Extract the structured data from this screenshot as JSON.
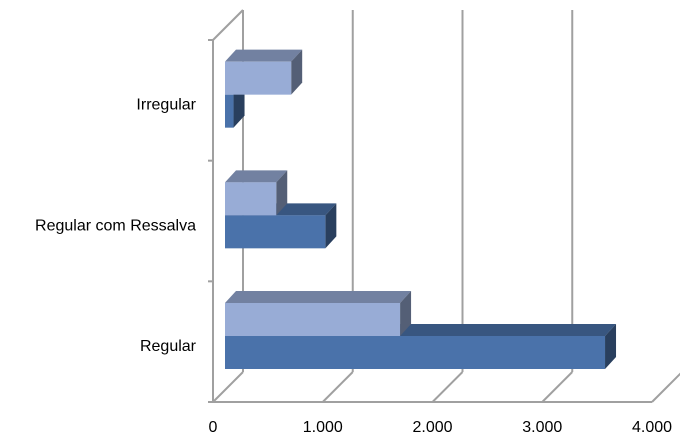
{
  "chart_data": {
    "type": "bar",
    "orientation": "horizontal",
    "style": "3d-clustered",
    "title": "",
    "xlabel": "",
    "ylabel": "",
    "categories": [
      "Regular",
      "Regular com Ressalva",
      "Irregular"
    ],
    "series": [
      {
        "values": [
          3560,
          940,
          80
        ],
        "color": "#4a72aa"
      },
      {
        "values": [
          1640,
          480,
          620
        ],
        "color": "#98acd6"
      }
    ],
    "xlim": [
      0,
      4000
    ],
    "xticks": [
      0,
      1000,
      2000,
      3000,
      4000
    ],
    "xtick_labels": [
      "0",
      "1.000",
      "2.000",
      "3.000",
      "4.000"
    ],
    "grid": true,
    "legend": "none"
  }
}
